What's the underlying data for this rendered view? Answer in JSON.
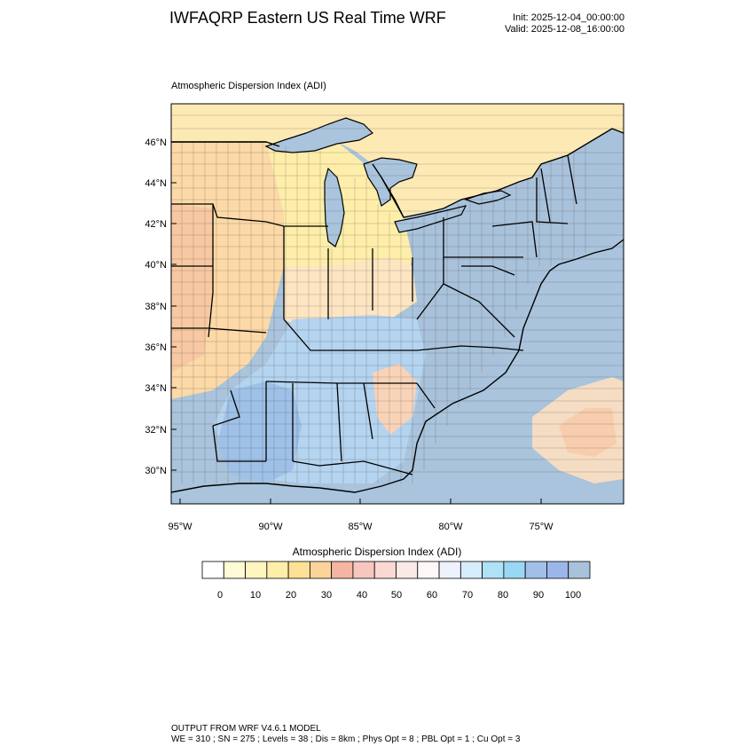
{
  "header": {
    "title": "IWFAQRP Eastern US Real Time WRF",
    "init": "Init: 2025-12-04_00:00:00",
    "valid": "Valid: 2025-12-08_16:00:00"
  },
  "panel": {
    "title": "Atmospheric Dispersion Index   (ADI)"
  },
  "map": {
    "lat_labels": [
      "46°N",
      "44°N",
      "42°N",
      "40°N",
      "38°N",
      "36°N",
      "34°N",
      "32°N",
      "30°N"
    ],
    "lon_labels": [
      "95°W",
      "90°W",
      "85°W",
      "80°W",
      "75°W"
    ],
    "colors": {
      "ocean": "#a9c4dc",
      "lakes": "#a9c4dc",
      "canada": "#fde9b4"
    }
  },
  "colorbar": {
    "title": "Atmospheric Dispersion Index  (ADI)",
    "colors": [
      "#ffffff",
      "#fffbd7",
      "#fef5c0",
      "#feeeaa",
      "#fde196",
      "#fcd49b",
      "#f6b5a2",
      "#f6c6bf",
      "#f9d9d2",
      "#fbe9e6",
      "#fdf8f7",
      "#eef2fd",
      "#d6ecfc",
      "#aee2f6",
      "#99d7f4",
      "#a1bfe9",
      "#9bb6e9",
      "#a9c2db"
    ],
    "tick_labels": [
      "0",
      "10",
      "20",
      "30",
      "40",
      "50",
      "60",
      "70",
      "80",
      "90",
      "100"
    ]
  },
  "footer": {
    "line1": "OUTPUT FROM WRF V4.6.1 MODEL",
    "line2": "WE = 310 ; SN = 275 ; Levels = 38 ; Dis = 8km ; Phys Opt = 8 ; PBL Opt = 1 ; Cu Opt = 3"
  }
}
